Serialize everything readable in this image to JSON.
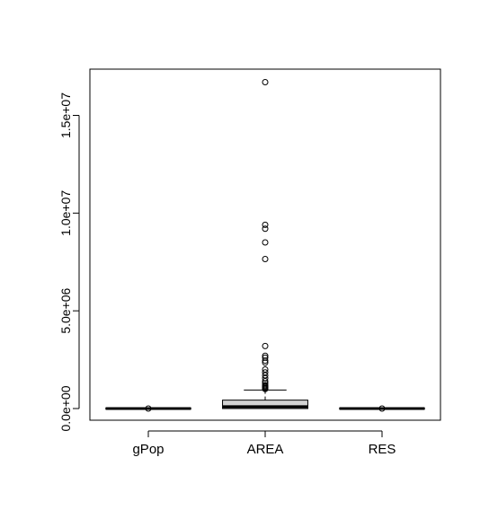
{
  "chart_data": {
    "type": "boxplot",
    "categories": [
      "gPop",
      "AREA",
      "RES"
    ],
    "y_ticks": [
      0,
      5000000,
      10000000,
      15000000
    ],
    "y_tick_labels": [
      "0.0e+00",
      "5.0e+06",
      "1.0e+07",
      "1.5e+07"
    ],
    "ylim": [
      -600000,
      17500000
    ],
    "boxes": [
      {
        "name": "gPop",
        "q1": 0,
        "median": 0,
        "q3": 0,
        "whisker_low": 0,
        "whisker_high": 0,
        "outliers": [
          0
        ]
      },
      {
        "name": "AREA",
        "q1": 0,
        "median": 100000,
        "q3": 430000,
        "whisker_low": 0,
        "whisker_high": 950000,
        "outliers": [
          16700000,
          9400000,
          9200000,
          8500000,
          7650000,
          3200000,
          2700000,
          2600000,
          2450000,
          2350000,
          2000000,
          1850000,
          1700000,
          1550000,
          1400000,
          1300000,
          1200000,
          1150000,
          1100000,
          1050000,
          1000000
        ]
      },
      {
        "name": "RES",
        "q1": 0,
        "median": 0,
        "q3": 0,
        "whisker_low": 0,
        "whisker_high": 0,
        "outliers": [
          0
        ]
      }
    ],
    "box_fill": "#d3d3d3",
    "title": "",
    "xlabel": "",
    "ylabel": ""
  }
}
